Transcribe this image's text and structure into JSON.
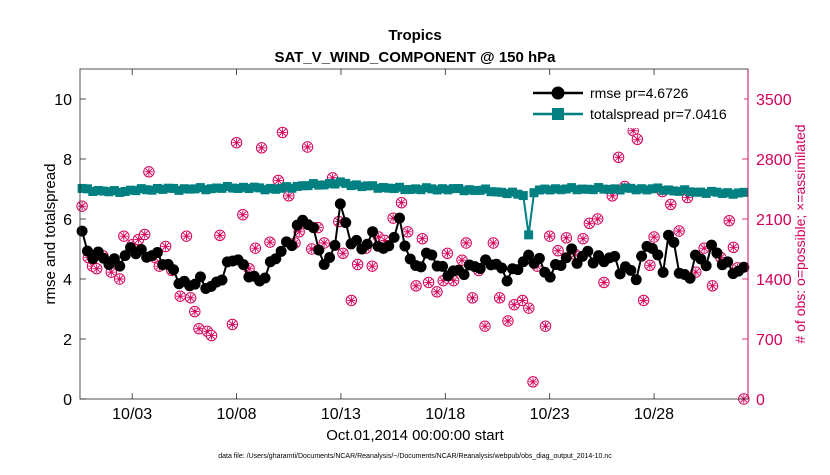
{
  "chart_data": {
    "type": "line",
    "title": "Tropics",
    "subtitle": "SAT_V_WIND_COMPONENT @ 150 hPa",
    "xlabel": "Oct.01,2014 00:00:00 start",
    "ylabel_left": "rmse and totalspread",
    "ylabel_right": "# of obs: o=possible; ×=assimilated",
    "footer": "data file: /Users/gharamti/Documents/NCAR/Reanalysis/~/Documents/NCAR/Reanalysis/webpub/obs_diag_output_2014-10.nc",
    "x_range_days": [
      0.5,
      32.5
    ],
    "ylim_left": [
      0,
      11
    ],
    "ylim_right": [
      0,
      3850
    ],
    "x_ticks": [
      {
        "label": "10/03",
        "day": 3
      },
      {
        "label": "10/08",
        "day": 8
      },
      {
        "label": "10/13",
        "day": 13
      },
      {
        "label": "10/18",
        "day": 18
      },
      {
        "label": "10/23",
        "day": 23
      },
      {
        "label": "10/28",
        "day": 28
      }
    ],
    "y_ticks_left": [
      "0",
      "2",
      "4",
      "6",
      "8",
      "10"
    ],
    "y_ticks_right": [
      "0",
      "700",
      "1400",
      "2100",
      "2800",
      "3500"
    ],
    "series": [
      {
        "name": "rmse",
        "legend": "rmse pr=4.6726",
        "color": "#000000",
        "marker": "circle",
        "anchors": [
          [
            0.6,
            5.5
          ],
          [
            0.9,
            4.7
          ],
          [
            1.2,
            5.0
          ],
          [
            1.6,
            4.7
          ],
          [
            2.0,
            4.4
          ],
          [
            2.4,
            4.6
          ],
          [
            2.8,
            5.0
          ],
          [
            3.2,
            4.9
          ],
          [
            3.6,
            4.7
          ],
          [
            4.0,
            5.0
          ],
          [
            4.4,
            4.6
          ],
          [
            4.8,
            4.3
          ],
          [
            5.2,
            4.1
          ],
          [
            5.6,
            3.8
          ],
          [
            6.0,
            3.8
          ],
          [
            6.4,
            3.9
          ],
          [
            6.8,
            3.8
          ],
          [
            7.2,
            3.9
          ],
          [
            7.6,
            4.4
          ],
          [
            8.0,
            4.9
          ],
          [
            8.4,
            4.3
          ],
          [
            8.8,
            4.0
          ],
          [
            9.0,
            3.7
          ],
          [
            9.4,
            4.3
          ],
          [
            9.8,
            4.7
          ],
          [
            10.2,
            4.9
          ],
          [
            10.6,
            5.2
          ],
          [
            11.0,
            6.0
          ],
          [
            11.4,
            5.9
          ],
          [
            11.8,
            5.3
          ],
          [
            12.2,
            4.6
          ],
          [
            12.6,
            4.7
          ],
          [
            12.9,
            6.1
          ],
          [
            13.0,
            6.4
          ],
          [
            13.4,
            5.4
          ],
          [
            13.8,
            5.2
          ],
          [
            14.2,
            5.0
          ],
          [
            14.6,
            5.5
          ],
          [
            15.0,
            5.0
          ],
          [
            15.4,
            5.2
          ],
          [
            15.8,
            5.8
          ],
          [
            16.2,
            4.9
          ],
          [
            16.6,
            4.4
          ],
          [
            17.0,
            4.6
          ],
          [
            17.4,
            4.8
          ],
          [
            17.8,
            4.4
          ],
          [
            18.2,
            4.2
          ],
          [
            18.6,
            4.1
          ],
          [
            19.0,
            4.4
          ],
          [
            19.4,
            4.5
          ],
          [
            19.8,
            4.3
          ],
          [
            20.2,
            4.6
          ],
          [
            20.6,
            4.5
          ],
          [
            21.0,
            4.0
          ],
          [
            21.4,
            4.2
          ],
          [
            21.8,
            4.8
          ],
          [
            22.2,
            4.7
          ],
          [
            22.6,
            4.5
          ],
          [
            22.8,
            4.0
          ],
          [
            23.2,
            4.4
          ],
          [
            23.6,
            4.6
          ],
          [
            24.0,
            4.8
          ],
          [
            24.4,
            4.6
          ],
          [
            24.8,
            5.0
          ],
          [
            25.2,
            4.5
          ],
          [
            25.6,
            4.6
          ],
          [
            26.0,
            4.9
          ],
          [
            26.4,
            4.3
          ],
          [
            26.8,
            4.2
          ],
          [
            27.2,
            4.1
          ],
          [
            27.6,
            5.3
          ],
          [
            28.0,
            4.9
          ],
          [
            28.4,
            4.2
          ],
          [
            28.8,
            5.9
          ],
          [
            29.2,
            4.3
          ],
          [
            29.6,
            3.7
          ],
          [
            30.0,
            4.9
          ],
          [
            30.4,
            4.5
          ],
          [
            30.8,
            5.0
          ],
          [
            31.2,
            4.6
          ],
          [
            31.6,
            4.5
          ],
          [
            32.0,
            4.2
          ],
          [
            32.3,
            4.2
          ]
        ],
        "n_points": 124
      },
      {
        "name": "totalspread",
        "legend": "totalspread pr=7.0416",
        "color": "#008080",
        "marker": "square",
        "anchors": [
          [
            0.6,
            7.0
          ],
          [
            2.0,
            6.9
          ],
          [
            4.0,
            7.0
          ],
          [
            6.0,
            7.0
          ],
          [
            8.0,
            7.05
          ],
          [
            10.0,
            7.0
          ],
          [
            11.0,
            7.1
          ],
          [
            13.0,
            7.2
          ],
          [
            14.0,
            7.1
          ],
          [
            16.0,
            7.0
          ],
          [
            18.0,
            7.0
          ],
          [
            20.0,
            6.95
          ],
          [
            21.8,
            6.8
          ],
          [
            22.0,
            5.4
          ],
          [
            22.2,
            6.9
          ],
          [
            23.0,
            7.0
          ],
          [
            26.0,
            7.0
          ],
          [
            28.0,
            7.0
          ],
          [
            30.0,
            6.9
          ],
          [
            32.3,
            6.85
          ]
        ],
        "n_points": 124
      },
      {
        "name": "obs possible",
        "color": "#d6005a",
        "marker": "circle-x",
        "points": [
          [
            0.6,
            2250
          ],
          [
            0.9,
            1650
          ],
          [
            1.1,
            1550
          ],
          [
            1.3,
            1520
          ],
          [
            1.6,
            1670
          ],
          [
            2.0,
            1480
          ],
          [
            2.4,
            1400
          ],
          [
            2.6,
            1900
          ],
          [
            3.0,
            1800
          ],
          [
            3.3,
            1860
          ],
          [
            3.6,
            1920
          ],
          [
            3.8,
            2650
          ],
          [
            4.1,
            1650
          ],
          [
            4.3,
            1550
          ],
          [
            4.6,
            1780
          ],
          [
            4.9,
            1500
          ],
          [
            5.3,
            1200
          ],
          [
            5.6,
            1900
          ],
          [
            5.8,
            1180
          ],
          [
            6.0,
            1020
          ],
          [
            6.2,
            820
          ],
          [
            6.6,
            790
          ],
          [
            6.8,
            740
          ],
          [
            7.2,
            1910
          ],
          [
            7.8,
            870
          ],
          [
            8.0,
            2990
          ],
          [
            8.3,
            2150
          ],
          [
            8.6,
            1520
          ],
          [
            8.9,
            1760
          ],
          [
            9.2,
            2930
          ],
          [
            9.6,
            1830
          ],
          [
            10.0,
            2550
          ],
          [
            10.2,
            3110
          ],
          [
            10.5,
            2370
          ],
          [
            10.8,
            1820
          ],
          [
            11.0,
            1950
          ],
          [
            11.4,
            2940
          ],
          [
            11.6,
            1750
          ],
          [
            11.9,
            2000
          ],
          [
            12.2,
            1820
          ],
          [
            12.6,
            2580
          ],
          [
            12.9,
            2070
          ],
          [
            13.1,
            1700
          ],
          [
            13.5,
            1150
          ],
          [
            13.8,
            1570
          ],
          [
            14.2,
            1760
          ],
          [
            14.5,
            1550
          ],
          [
            14.8,
            1890
          ],
          [
            15.1,
            1850
          ],
          [
            15.5,
            2110
          ],
          [
            15.9,
            2290
          ],
          [
            16.2,
            1950
          ],
          [
            16.6,
            1320
          ],
          [
            16.9,
            1870
          ],
          [
            17.2,
            1360
          ],
          [
            17.6,
            1250
          ],
          [
            17.9,
            1380
          ],
          [
            18.1,
            1700
          ],
          [
            18.4,
            1380
          ],
          [
            18.8,
            1620
          ],
          [
            19.0,
            1820
          ],
          [
            19.3,
            1180
          ],
          [
            19.6,
            1500
          ],
          [
            19.9,
            850
          ],
          [
            20.3,
            1820
          ],
          [
            20.6,
            1180
          ],
          [
            21.0,
            910
          ],
          [
            21.3,
            1100
          ],
          [
            21.7,
            1150
          ],
          [
            22.0,
            1060
          ],
          [
            22.2,
            200
          ],
          [
            22.4,
            1550
          ],
          [
            22.8,
            850
          ],
          [
            23.0,
            1900
          ],
          [
            23.4,
            1730
          ],
          [
            23.8,
            1880
          ],
          [
            24.2,
            1690
          ],
          [
            24.6,
            1870
          ],
          [
            24.9,
            2050
          ],
          [
            25.3,
            2100
          ],
          [
            25.6,
            1360
          ],
          [
            26.0,
            2370
          ],
          [
            26.3,
            2820
          ],
          [
            26.6,
            2480
          ],
          [
            27.0,
            3130
          ],
          [
            27.2,
            3030
          ],
          [
            27.5,
            1150
          ],
          [
            27.8,
            1560
          ],
          [
            28.0,
            1890
          ],
          [
            28.4,
            2420
          ],
          [
            28.8,
            2270
          ],
          [
            29.2,
            1960
          ],
          [
            29.6,
            2350
          ],
          [
            30.0,
            1480
          ],
          [
            30.4,
            1760
          ],
          [
            30.8,
            1320
          ],
          [
            31.2,
            1650
          ],
          [
            31.6,
            2080
          ],
          [
            31.8,
            1770
          ],
          [
            32.0,
            1530
          ],
          [
            32.3,
            0
          ]
        ],
        "n_points": 124
      }
    ]
  }
}
